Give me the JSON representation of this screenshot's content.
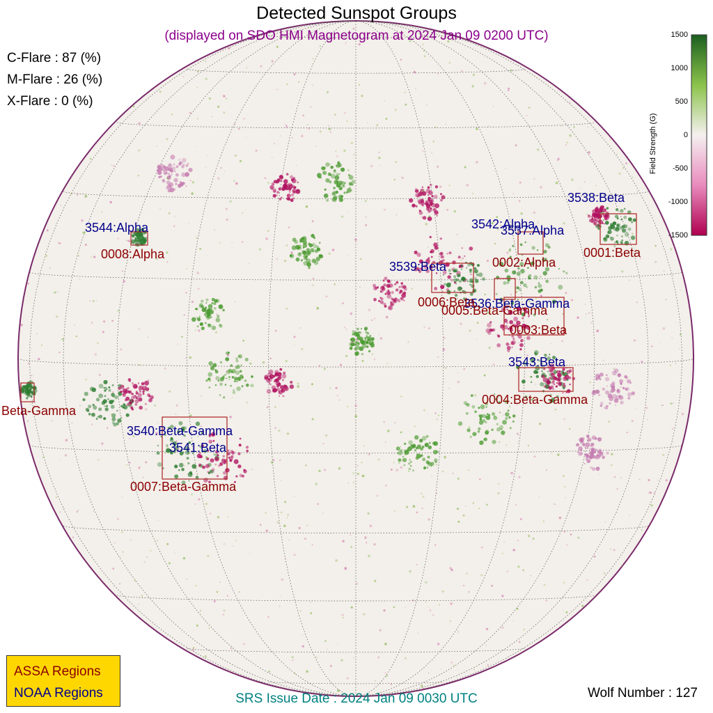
{
  "title": "Detected Sunspot Groups",
  "subtitle": "(displayed on SDO HMI Magnetogram at 2024 Jan 09 0200 UTC)",
  "flare_probabilities": {
    "c": "C-Flare : 87 (%)",
    "m": "M-Flare : 26 (%)",
    "x": "X-Flare :  0 (%)"
  },
  "colorbar": {
    "title": "Field Strength (G)",
    "ticks": [
      "1500",
      "1000",
      "500",
      "0",
      "-500",
      "-1000",
      "-1500"
    ],
    "colors": {
      "positive": "#2e7d32",
      "mid": "#f5f0f0",
      "negative": "#c2185b"
    }
  },
  "noaa_labels": [
    "3544:Alpha",
    "3538:Beta",
    "3542:Alpha",
    "3537:Alpha",
    "3539:Beta",
    "3536:Beta-Gamma",
    "3543:Beta",
    "3540:Beta-Gamma",
    "3541:Beta"
  ],
  "assa_labels": [
    "0008:Alpha",
    "0001:Beta",
    "0002:Alpha",
    "0006:Beta",
    "0005:Beta-Gamma",
    "0003:Beta",
    "0004:Beta-Gamma",
    "Beta-Gamma",
    "0007:Beta-Gamma"
  ],
  "legend": {
    "assa": "ASSA Regions",
    "noaa": "NOAA Regions"
  },
  "srs_issue": "SRS Issue Date : 2024 Jan 09 0030 UTC",
  "wolf_number": "Wolf Number : 127",
  "colors": {
    "noaa": "#00008b",
    "assa": "#8b0000",
    "legend_bg": "#ffd700",
    "box": "#b03030"
  }
}
